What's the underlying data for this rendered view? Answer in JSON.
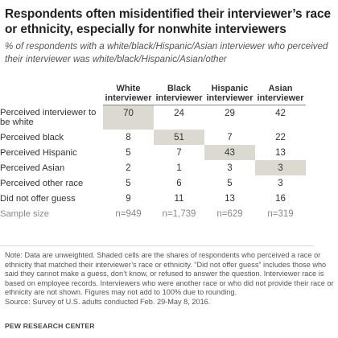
{
  "chart_data": {
    "type": "table",
    "title": "Respondents often misidentified their interviewer’s race or ethnicity, especially for nonwhite interviewers",
    "subtitle": "% of respondents with a white/black/Hispanic/Asian interviewer who perceived their interviewer was white/black/Hispanic/Asian/other",
    "columns": [
      "White interviewer",
      "Black interviewer",
      "Hispanic interviewer",
      "Asian interviewer"
    ],
    "rows": [
      {
        "label": "Perceived interviewer to be white",
        "values": [
          "70",
          "24",
          "29",
          "42"
        ],
        "shaded": 0
      },
      {
        "label": "Perceived black",
        "values": [
          "8",
          "51",
          "7",
          "22"
        ],
        "shaded": 1
      },
      {
        "label": "Perceived Hispanic",
        "values": [
          "5",
          "7",
          "43",
          "13"
        ],
        "shaded": 2
      },
      {
        "label": "Perceived Asian",
        "values": [
          "2",
          "1",
          "3",
          "3"
        ],
        "shaded": 3
      },
      {
        "label": "Perceived other race",
        "values": [
          "5",
          "6",
          "5",
          "3"
        ],
        "shaded": null
      },
      {
        "label": "Did not offer guess",
        "values": [
          "9",
          "11",
          "13",
          "16"
        ],
        "shaded": null
      }
    ],
    "sample": {
      "label": "Sample size",
      "values": [
        "n=949",
        "n=1,739",
        "n=629",
        "n=319"
      ]
    },
    "shade_color": "#dcdad0"
  },
  "note": "Note: Data are unweighted. Shaded cells are the shares of respondents who perceived a race or ethnicity that matched their interviewer’s race or ethnicity. “Did not offer guess” includes those who said they cannot make a guess, don’t know, or refused to answer the question. Interviewer race is based on employee records. Interviewers who were another race or who did not provide their race or ethnicity are not shown. Figures may not add to 100% due to rounding.",
  "source": "Source: Survey of U.S. adults conducted Feb. 29-May 8, 2016.",
  "credit": "PEW RESEARCH CENTER"
}
